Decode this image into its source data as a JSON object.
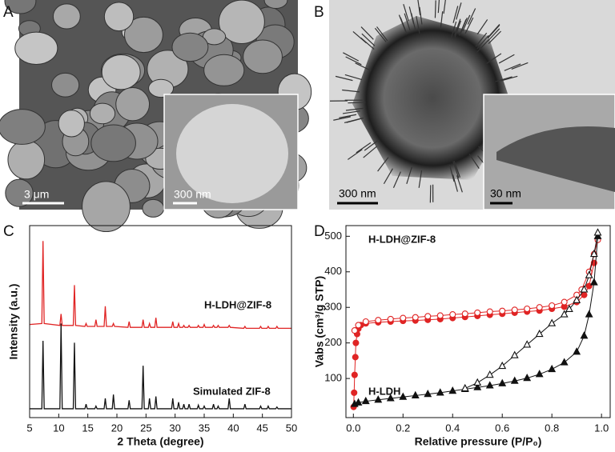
{
  "panels": [
    {
      "label": "A",
      "scale_bar": "3 μm",
      "inset_scale_bar": "300 nm"
    },
    {
      "label": "B",
      "scale_bar": "300 nm",
      "inset_scale_bar": "30 nm"
    }
  ],
  "chart_data": [
    {
      "type": "line",
      "panel_label": "C",
      "x_label": "2 Theta (degree)",
      "y_label": "Intensity (a.u.)",
      "xlim": [
        5,
        50
      ],
      "xticks": [
        5,
        10,
        15,
        20,
        25,
        30,
        35,
        40,
        45,
        50
      ],
      "ylim": [
        0,
        100
      ],
      "x": [
        5,
        7.1,
        7.3,
        7.5,
        10.2,
        10.4,
        10.6,
        12.5,
        12.7,
        12.9,
        14.5,
        14.7,
        14.9,
        16.2,
        16.4,
        16.6,
        17.8,
        18,
        18.2,
        19.2,
        19.4,
        19.6,
        21.9,
        22.1,
        22.3,
        24.3,
        24.5,
        24.7,
        25.4,
        25.6,
        25.8,
        26.5,
        26.7,
        26.9,
        29.4,
        29.6,
        29.8,
        30.4,
        30.6,
        30.8,
        31.3,
        31.5,
        31.7,
        32.2,
        32.4,
        32.6,
        33.8,
        34,
        34.2,
        34.8,
        35,
        35.2,
        36.4,
        36.6,
        36.8,
        37.2,
        37.4,
        37.6,
        39.1,
        39.3,
        39.5,
        41.8,
        42,
        42.2,
        44.5,
        44.7,
        44.9,
        45.8,
        46,
        46.2,
        47.3,
        47.5,
        47.7,
        50
      ],
      "series": [
        {
          "name": "H-LDH@ZIF-8",
          "color": "#e02424",
          "values": [
            48.5,
            49,
            92,
            49,
            48,
            54,
            48,
            48,
            69,
            48,
            47.5,
            49,
            47.5,
            47.5,
            51,
            47.5,
            47.5,
            58,
            47.5,
            47.5,
            49,
            47.5,
            47,
            50,
            47,
            47,
            51,
            47,
            47,
            49,
            47,
            47,
            52,
            47,
            47,
            50,
            47,
            47,
            49,
            47,
            47,
            48,
            47,
            47,
            48,
            47,
            47,
            48,
            47,
            47,
            48.5,
            47,
            47,
            48,
            47,
            47,
            48,
            47,
            47,
            48,
            47,
            46.5,
            47.5,
            46.5,
            46.5,
            47.5,
            46.5,
            46.5,
            47.5,
            46.5,
            46.5,
            47.5,
            46.5,
            46.5
          ]
        },
        {
          "name": "Simulated ZIF-8",
          "color": "#111111",
          "values": [
            4.6,
            4.6,
            40,
            4.6,
            4.6,
            49,
            4.6,
            4.6,
            39,
            4.6,
            4.6,
            7,
            4.6,
            4.6,
            6,
            4.6,
            4.6,
            10,
            4.6,
            4.6,
            12,
            4.6,
            4.6,
            9,
            4.6,
            4.6,
            27,
            4.6,
            4.6,
            10,
            4.6,
            4.6,
            11,
            4.6,
            4.6,
            10,
            4.6,
            4.6,
            8,
            4.6,
            4.6,
            7,
            4.6,
            4.6,
            7,
            4.6,
            4.6,
            6.5,
            4.6,
            4.6,
            6,
            4.6,
            4.6,
            7,
            4.6,
            4.6,
            6,
            4.6,
            4.6,
            10,
            4.6,
            4.6,
            7,
            4.6,
            4.6,
            6,
            4.6,
            4.6,
            6,
            4.6,
            4.6,
            5.5,
            4.6,
            4.6
          ]
        }
      ]
    },
    {
      "type": "line",
      "panel_label": "D",
      "x_label": "Relative pressure (P/P₀)",
      "y_label": "Vabs (cm³/g STP)",
      "xlim": [
        -0.03,
        1.035
      ],
      "xticks": [
        {
          "value": 0,
          "label": "0.0"
        },
        {
          "value": 0.2,
          "label": "0.2"
        },
        {
          "value": 0.4,
          "label": "0.4"
        },
        {
          "value": 0.6,
          "label": "0.6"
        },
        {
          "value": 0.8,
          "label": "0.8"
        },
        {
          "value": 1,
          "label": "1.0"
        }
      ],
      "ylim": [
        -10,
        530
      ],
      "yticks": [
        100,
        200,
        300,
        400,
        500
      ],
      "series": [
        {
          "name": "H-LDH@ZIF-8",
          "color": "#e02424",
          "marker": "circle",
          "adsorption": {
            "x": [
              0.001,
              0.003,
              0.005,
              0.008,
              0.01,
              0.015,
              0.02,
              0.03,
              0.05,
              0.1,
              0.15,
              0.2,
              0.25,
              0.3,
              0.35,
              0.4,
              0.45,
              0.5,
              0.55,
              0.6,
              0.65,
              0.7,
              0.75,
              0.8,
              0.85,
              0.9,
              0.93,
              0.95,
              0.97
            ],
            "values": [
              20,
              60,
              110,
              160,
              200,
              225,
              240,
              250,
              255,
              258,
              260,
              262,
              263,
              265,
              267,
              270,
              273,
              276,
              279,
              282,
              285,
              288,
              291,
              296,
              302,
              315,
              335,
              360,
              425
            ]
          },
          "desorption": {
            "x": [
              0.985,
              0.97,
              0.95,
              0.92,
              0.9,
              0.85,
              0.8,
              0.75,
              0.7,
              0.65,
              0.6,
              0.55,
              0.5,
              0.45,
              0.4,
              0.35,
              0.3,
              0.25,
              0.2,
              0.15,
              0.1,
              0.05,
              0.02,
              0.005
            ],
            "values": [
              490,
              450,
              400,
              350,
              335,
              315,
              305,
              300,
              296,
              293,
              290,
              288,
              285,
              282,
              280,
              277,
              275,
              272,
              270,
              267,
              264,
              260,
              250,
              235
            ]
          }
        },
        {
          "name": "H-LDH",
          "color": "#111111",
          "marker": "triangle",
          "adsorption": {
            "x": [
              0.005,
              0.02,
              0.05,
              0.1,
              0.15,
              0.2,
              0.25,
              0.3,
              0.35,
              0.4,
              0.45,
              0.5,
              0.55,
              0.6,
              0.65,
              0.7,
              0.75,
              0.8,
              0.85,
              0.9,
              0.93,
              0.95,
              0.97,
              0.985
            ],
            "values": [
              28,
              32,
              36,
              40,
              44,
              48,
              52,
              56,
              60,
              65,
              70,
              75,
              80,
              86,
              93,
              101,
              112,
              126,
              145,
              175,
              220,
              280,
              370,
              500
            ]
          },
          "desorption": {
            "x": [
              0.985,
              0.97,
              0.95,
              0.93,
              0.9,
              0.87,
              0.85,
              0.8,
              0.75,
              0.7,
              0.65,
              0.6,
              0.55,
              0.5,
              0.45
            ],
            "values": [
              510,
              450,
              390,
              350,
              320,
              295,
              280,
              255,
              225,
              195,
              165,
              135,
              110,
              88,
              72
            ]
          }
        }
      ]
    }
  ]
}
